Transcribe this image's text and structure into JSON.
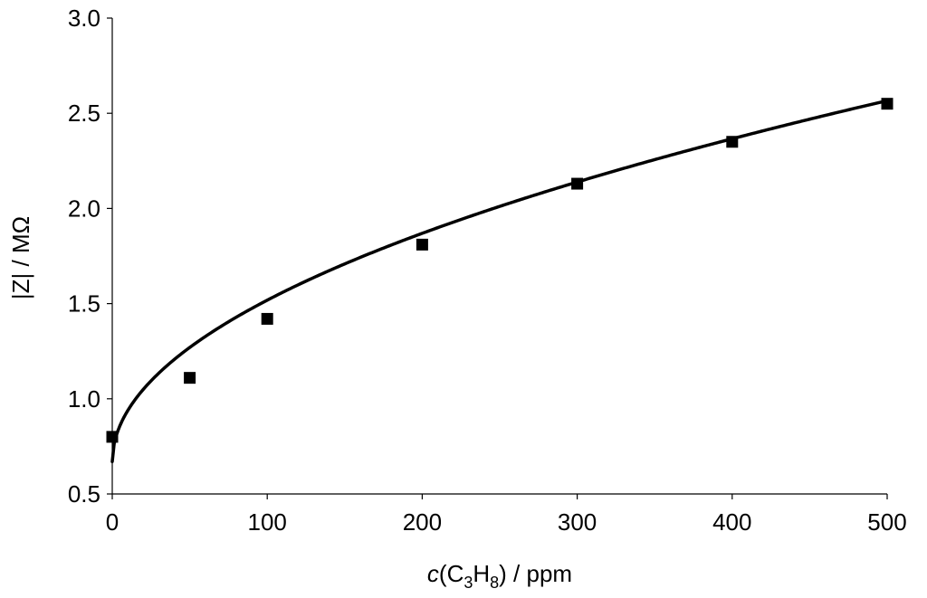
{
  "chart_data": {
    "type": "scatter",
    "title": "",
    "xlabel": {
      "italic": "c",
      "open": "(C",
      "sub1": "3",
      "mid": "H",
      "sub2": "8",
      "close": ") / ppm"
    },
    "ylabel": "|Z| / MΩ",
    "xlim": [
      0,
      500
    ],
    "ylim": [
      0.5,
      3.0
    ],
    "xticks": [
      0,
      100,
      200,
      300,
      400,
      500
    ],
    "xtick_labels": [
      "0",
      "100",
      "200",
      "300",
      "400",
      "500"
    ],
    "yticks": [
      0.5,
      1.0,
      1.5,
      2.0,
      2.5,
      3.0
    ],
    "ytick_labels": [
      "0.5",
      "1.0",
      "1.5",
      "2.0",
      "2.5",
      "3.0"
    ],
    "grid": false,
    "series": [
      {
        "marker": "square",
        "color": "#000000",
        "x": [
          0,
          50,
          100,
          200,
          300,
          400,
          500
        ],
        "y": [
          0.8,
          1.11,
          1.42,
          1.81,
          2.13,
          2.35,
          2.55
        ]
      }
    ],
    "fit_curve": {
      "color": "#000000",
      "form": "power",
      "a": 0.67,
      "b": 0.0848,
      "p": 0.5
    }
  }
}
